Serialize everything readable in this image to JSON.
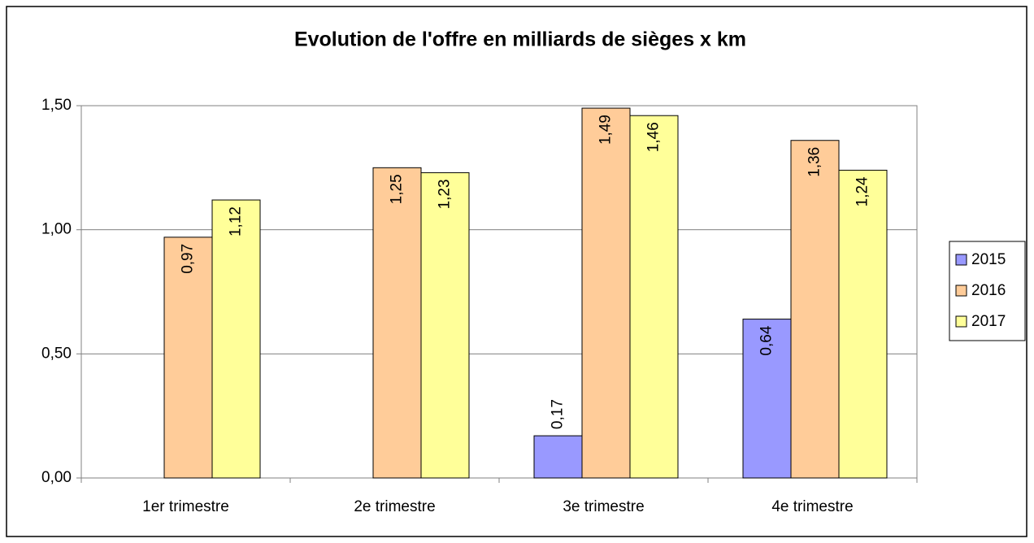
{
  "chart_data": {
    "type": "bar",
    "title": "Evolution de l'offre en milliards de sièges x km",
    "categories": [
      "1er trimestre",
      "2e trimestre",
      "3e trimestre",
      "4e trimestre"
    ],
    "series": [
      {
        "name": "2015",
        "color": "#9999ff",
        "values": [
          null,
          null,
          0.17,
          0.64
        ],
        "value_labels": [
          null,
          null,
          "0,17",
          "0,64"
        ]
      },
      {
        "name": "2016",
        "color": "#ffcc99",
        "values": [
          0.97,
          1.25,
          1.49,
          1.36
        ],
        "value_labels": [
          "0,97",
          "1,25",
          "1,49",
          "1,36"
        ]
      },
      {
        "name": "2017",
        "color": "#ffff99",
        "values": [
          1.12,
          1.23,
          1.46,
          1.24
        ],
        "value_labels": [
          "1,12",
          "1,23",
          "1,46",
          "1,24"
        ]
      }
    ],
    "ylim": [
      0,
      1.5
    ],
    "yticks": [
      {
        "value": 0,
        "label": "0,00"
      },
      {
        "value": 0.5,
        "label": "0,50"
      },
      {
        "value": 1,
        "label": "1,00"
      },
      {
        "value": 1.5,
        "label": "1,50"
      }
    ],
    "grid": true,
    "legend": "right"
  }
}
